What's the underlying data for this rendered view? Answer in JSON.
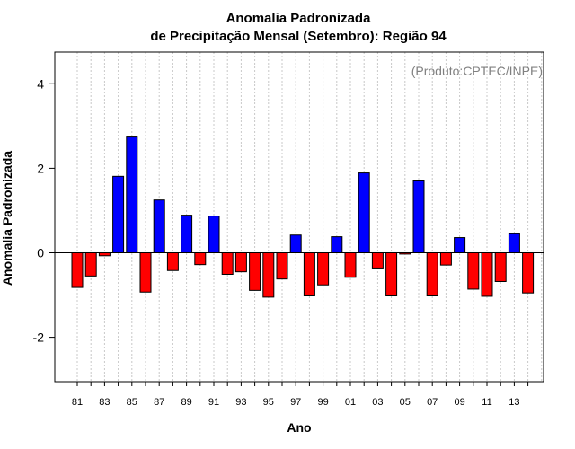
{
  "chart_data": {
    "type": "bar",
    "title_line1": "Anomalia Padronizada",
    "title_line2": "de Precipitação Mensal (Setembro): Região 94",
    "xlabel": "Ano",
    "ylabel": "Anomalia Padronizada",
    "credit": "(Produto:CPTEC/INPE)",
    "ylim": [
      -3.05,
      4.75
    ],
    "yticks": [
      -2,
      0,
      2,
      4
    ],
    "grid": "vertical dotted",
    "colors": {
      "positive": "#0000ff",
      "negative": "#ff0000"
    },
    "categories": [
      "81",
      "82",
      "83",
      "84",
      "85",
      "86",
      "87",
      "88",
      "89",
      "90",
      "91",
      "92",
      "93",
      "94",
      "95",
      "96",
      "97",
      "98",
      "99",
      "00",
      "01",
      "02",
      "03",
      "04",
      "05",
      "06",
      "07",
      "08",
      "09",
      "10",
      "11",
      "12",
      "13",
      "14"
    ],
    "values": [
      -0.82,
      -0.55,
      -0.07,
      1.81,
      2.74,
      -0.93,
      1.25,
      -0.42,
      0.89,
      -0.28,
      0.87,
      -0.51,
      -0.45,
      -0.89,
      -1.05,
      -0.62,
      0.42,
      -1.02,
      -0.76,
      0.38,
      -0.58,
      1.89,
      -0.36,
      -1.02,
      -0.03,
      1.7,
      -1.02,
      -0.29,
      0.36,
      -0.86,
      -1.03,
      -0.68,
      0.45,
      -0.95
    ],
    "xtick_labels": [
      "81",
      "83",
      "85",
      "87",
      "89",
      "91",
      "93",
      "95",
      "97",
      "99",
      "01",
      "03",
      "05",
      "07",
      "09",
      "11",
      "13"
    ]
  }
}
